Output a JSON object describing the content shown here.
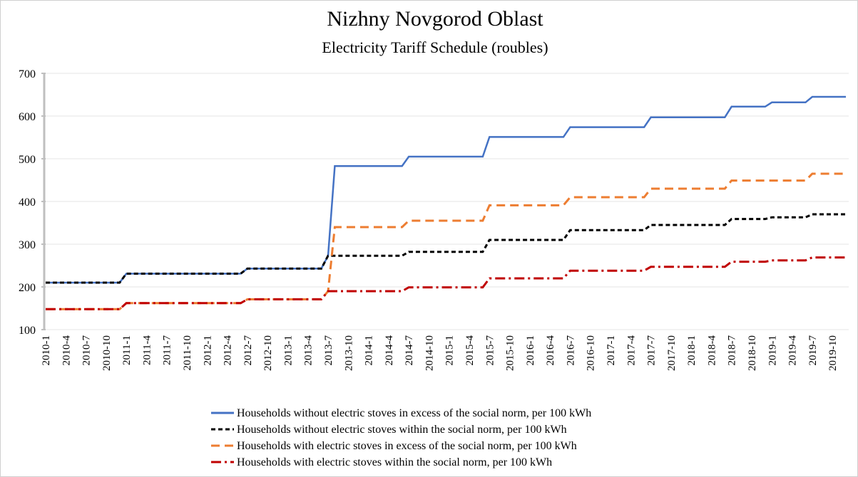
{
  "chart_data": {
    "type": "line",
    "title": "Nizhny Novgorod  Oblast",
    "subtitle": "Electricity Tariff Schedule (roubles)",
    "categories": [
      "2010-1",
      null,
      null,
      "2010-4",
      null,
      null,
      "2010-7",
      null,
      null,
      "2010-10",
      null,
      null,
      "2011-1",
      null,
      null,
      "2011-4",
      null,
      null,
      "2011-7",
      null,
      null,
      "2011-10",
      null,
      null,
      "2012-1",
      null,
      null,
      "2012-4",
      null,
      null,
      "2012-7",
      null,
      null,
      "2012-10",
      null,
      null,
      "2013-1",
      null,
      null,
      "2013-4",
      null,
      null,
      "2013-7",
      null,
      null,
      "2013-10",
      null,
      null,
      "2014-1",
      null,
      null,
      "2014-4",
      null,
      null,
      "2014-7",
      null,
      null,
      "2014-10",
      null,
      null,
      "2015-1",
      null,
      null,
      "2015-4",
      null,
      null,
      "2015-7",
      null,
      null,
      "2015-10",
      null,
      null,
      "2016-1",
      null,
      null,
      "2016-4",
      null,
      null,
      "2016-7",
      null,
      null,
      "2016-10",
      null,
      null,
      "2017-1",
      null,
      null,
      "2017-4",
      null,
      null,
      "2017-7",
      null,
      null,
      "2017-10",
      null,
      null,
      "2018-1",
      null,
      null,
      "2018-4",
      null,
      null,
      "2018-7",
      null,
      null,
      "2018-10",
      null,
      null,
      "2019-1",
      null,
      null,
      "2019-4",
      null,
      null,
      "2019-7",
      null,
      null,
      "2019-10",
      null,
      null
    ],
    "series": [
      {
        "name": "Households without electric stoves in excess of the social norm, per 100 kWh",
        "color": "#4472c4",
        "style": "solid",
        "values": [
          210,
          210,
          210,
          210,
          210,
          210,
          210,
          210,
          210,
          210,
          210,
          210,
          231,
          231,
          231,
          231,
          231,
          231,
          231,
          231,
          231,
          231,
          231,
          231,
          231,
          231,
          231,
          231,
          231,
          231,
          243,
          243,
          243,
          243,
          243,
          243,
          243,
          243,
          243,
          243,
          243,
          243,
          273,
          483,
          483,
          483,
          483,
          483,
          483,
          483,
          483,
          483,
          483,
          483,
          505,
          505,
          505,
          505,
          505,
          505,
          505,
          505,
          505,
          505,
          505,
          505,
          551,
          551,
          551,
          551,
          551,
          551,
          551,
          551,
          551,
          551,
          551,
          551,
          574,
          574,
          574,
          574,
          574,
          574,
          574,
          574,
          574,
          574,
          574,
          574,
          597,
          597,
          597,
          597,
          597,
          597,
          597,
          597,
          597,
          597,
          597,
          597,
          622,
          622,
          622,
          622,
          622,
          622,
          632,
          632,
          632,
          632,
          632,
          632,
          645,
          645,
          645,
          645,
          645,
          645
        ]
      },
      {
        "name": "Households  without electric stoves within the social norm, per 100 kWh",
        "color": "#000000",
        "style": "dashed",
        "values": [
          210,
          210,
          210,
          210,
          210,
          210,
          210,
          210,
          210,
          210,
          210,
          210,
          231,
          231,
          231,
          231,
          231,
          231,
          231,
          231,
          231,
          231,
          231,
          231,
          231,
          231,
          231,
          231,
          231,
          231,
          243,
          243,
          243,
          243,
          243,
          243,
          243,
          243,
          243,
          243,
          243,
          243,
          273,
          273,
          273,
          273,
          273,
          273,
          273,
          273,
          273,
          273,
          273,
          273,
          282,
          282,
          282,
          282,
          282,
          282,
          282,
          282,
          282,
          282,
          282,
          282,
          310,
          310,
          310,
          310,
          310,
          310,
          310,
          310,
          310,
          310,
          310,
          310,
          333,
          333,
          333,
          333,
          333,
          333,
          333,
          333,
          333,
          333,
          333,
          333,
          345,
          345,
          345,
          345,
          345,
          345,
          345,
          345,
          345,
          345,
          345,
          345,
          359,
          359,
          359,
          359,
          359,
          359,
          363,
          363,
          363,
          363,
          363,
          363,
          370,
          370,
          370,
          370,
          370,
          370
        ]
      },
      {
        "name": "Households with electric stoves in excess of the social norm, per 100 kWh",
        "color": "#ed7d31",
        "style": "long-dash",
        "values": [
          148,
          148,
          148,
          148,
          148,
          148,
          148,
          148,
          148,
          148,
          148,
          148,
          162,
          162,
          162,
          162,
          162,
          162,
          162,
          162,
          162,
          162,
          162,
          162,
          162,
          162,
          162,
          162,
          162,
          162,
          171,
          171,
          171,
          171,
          171,
          171,
          171,
          171,
          171,
          171,
          171,
          171,
          190,
          340,
          340,
          340,
          340,
          340,
          340,
          340,
          340,
          340,
          340,
          340,
          355,
          355,
          355,
          355,
          355,
          355,
          355,
          355,
          355,
          355,
          355,
          355,
          391,
          391,
          391,
          391,
          391,
          391,
          391,
          391,
          391,
          391,
          391,
          391,
          410,
          410,
          410,
          410,
          410,
          410,
          410,
          410,
          410,
          410,
          410,
          410,
          430,
          430,
          430,
          430,
          430,
          430,
          430,
          430,
          430,
          430,
          430,
          430,
          449,
          449,
          449,
          449,
          449,
          449,
          449,
          449,
          449,
          449,
          449,
          449,
          465,
          465,
          465,
          465,
          465,
          465
        ]
      },
      {
        "name": "Households  with electric stoves within the social norm, per 100 kWh",
        "color": "#c00000",
        "style": "dash-dot",
        "values": [
          148,
          148,
          148,
          148,
          148,
          148,
          148,
          148,
          148,
          148,
          148,
          148,
          162,
          162,
          162,
          162,
          162,
          162,
          162,
          162,
          162,
          162,
          162,
          162,
          162,
          162,
          162,
          162,
          162,
          162,
          171,
          171,
          171,
          171,
          171,
          171,
          171,
          171,
          171,
          171,
          171,
          171,
          190,
          190,
          190,
          190,
          190,
          190,
          190,
          190,
          190,
          190,
          190,
          190,
          199,
          199,
          199,
          199,
          199,
          199,
          199,
          199,
          199,
          199,
          199,
          199,
          220,
          220,
          220,
          220,
          220,
          220,
          220,
          220,
          220,
          220,
          220,
          220,
          238,
          238,
          238,
          238,
          238,
          238,
          238,
          238,
          238,
          238,
          238,
          238,
          247,
          247,
          247,
          247,
          247,
          247,
          247,
          247,
          247,
          247,
          247,
          247,
          259,
          259,
          259,
          259,
          259,
          259,
          262,
          262,
          262,
          262,
          262,
          262,
          269,
          269,
          269,
          269,
          269,
          269
        ]
      }
    ],
    "ylim": [
      100,
      700
    ],
    "yticks": [
      100,
      200,
      300,
      400,
      500,
      600,
      700
    ],
    "grid": true,
    "legend": "bottom"
  }
}
